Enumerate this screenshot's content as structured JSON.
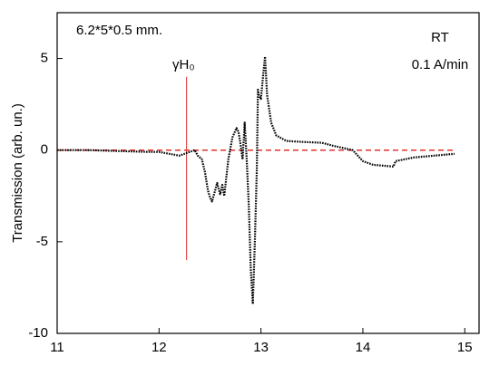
{
  "chart_data": {
    "type": "line",
    "y_label": "Transmission (arb. un.)",
    "annotations": [
      "6.2*5*0.5 mm.",
      "RT",
      "0.1 A/min",
      "γH₀"
    ],
    "xlim": [
      11,
      15.14
    ],
    "xticks": [
      11,
      12,
      13,
      14,
      15
    ],
    "ylim": [
      -10,
      7.5
    ],
    "yticks": [
      -10,
      -5,
      0,
      5
    ],
    "grid": false,
    "reference_lines": {
      "hline": {
        "y": 0,
        "color": "#e03030",
        "x": [
          11,
          14.9
        ]
      },
      "vline": {
        "x": 12.27,
        "color": "#e03030",
        "y": [
          -6,
          4
        ]
      }
    },
    "series": [
      {
        "color": "#000000",
        "x": [
          11.0,
          11.3,
          11.6,
          11.9,
          12.0,
          12.1,
          12.2,
          12.3,
          12.35,
          12.38,
          12.42,
          12.45,
          12.48,
          12.5,
          12.52,
          12.55,
          12.57,
          12.6,
          12.62,
          12.64,
          12.66,
          12.68,
          12.72,
          12.76,
          12.78,
          12.8,
          12.82,
          12.84,
          12.86,
          12.88,
          12.9,
          12.92,
          12.94,
          12.96,
          12.97,
          12.98,
          13.0,
          13.02,
          13.04,
          13.06,
          13.1,
          13.15,
          13.25,
          13.4,
          13.6,
          13.7,
          13.9,
          14.0,
          14.1,
          14.3,
          14.32,
          14.5,
          14.7,
          14.9
        ],
        "values": [
          0,
          0,
          -0.05,
          -0.1,
          -0.1,
          -0.2,
          -0.3,
          -0.1,
          0,
          -0.3,
          -0.5,
          -1.2,
          -2.2,
          -2.6,
          -2.8,
          -2.2,
          -1.8,
          -2.4,
          -1.9,
          -2.5,
          -1.5,
          -0.5,
          0.7,
          1.2,
          1.0,
          0.3,
          -0.5,
          1.5,
          -0.5,
          -3,
          -6.5,
          -8.4,
          -5,
          -1,
          3.3,
          3.0,
          2.8,
          4,
          5.1,
          3,
          1.5,
          0.8,
          0.5,
          0.45,
          0.4,
          0.25,
          0,
          -0.6,
          -0.8,
          -0.9,
          -0.6,
          -0.4,
          -0.3,
          -0.2
        ]
      }
    ]
  }
}
